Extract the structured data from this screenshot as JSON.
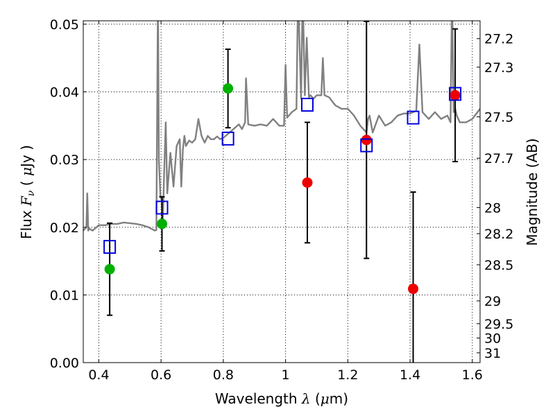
{
  "chart_data": {
    "type": "scatter",
    "xlabel": {
      "prefix": "Wavelength  ",
      "symbol": "λ",
      "unit_open": " (",
      "unit_mu": "μ",
      "unit_rest": "m)"
    },
    "ylabel": {
      "prefix": "Flux  ",
      "symbol": "F",
      "sub": "ν",
      "unit_open": "  (  ",
      "unit_mu": "μ",
      "unit_rest": "Jy )"
    },
    "y2label": "Magnitude (AB)",
    "xlim": [
      0.35,
      1.625
    ],
    "ylim": [
      0.0,
      0.0505
    ],
    "xticks": [
      0.4,
      0.6,
      0.8,
      1.0,
      1.2,
      1.4,
      1.6
    ],
    "xtick_labels": [
      "0.4",
      "0.6",
      "0.8",
      "1",
      "1.2",
      "1.4",
      "1.6"
    ],
    "yticks": [
      0.0,
      0.01,
      0.02,
      0.03,
      0.04,
      0.05
    ],
    "ytick_labels": [
      "0.00",
      "0.01",
      "0.02",
      "0.03",
      "0.04",
      "0.05"
    ],
    "y2ticks": [
      27.2,
      27.3,
      27.5,
      27.7,
      28,
      28.2,
      28.5,
      29,
      29.5,
      30,
      31
    ],
    "y2tick_labels": [
      "27.2",
      "27.3",
      "27.5",
      "27.7",
      "28",
      "28.2",
      "28.5",
      "29",
      "29.5",
      "30",
      "31"
    ],
    "grid": true,
    "colors": {
      "spectrum": "#808080",
      "green": "#00b000",
      "red": "#ee0000",
      "blue": "#0000dd",
      "errorbar": "#000000"
    },
    "spectrum": {
      "x": [
        0.35,
        0.36,
        0.363,
        0.366,
        0.369,
        0.38,
        0.4,
        0.42,
        0.44,
        0.46,
        0.48,
        0.5,
        0.52,
        0.54,
        0.56,
        0.58,
        0.585,
        0.59,
        0.593,
        0.598,
        0.602,
        0.605,
        0.61,
        0.615,
        0.62,
        0.63,
        0.64,
        0.65,
        0.66,
        0.665,
        0.67,
        0.675,
        0.68,
        0.69,
        0.7,
        0.71,
        0.72,
        0.73,
        0.74,
        0.75,
        0.76,
        0.77,
        0.78,
        0.79,
        0.8,
        0.82,
        0.84,
        0.85,
        0.86,
        0.87,
        0.873,
        0.88,
        0.9,
        0.92,
        0.94,
        0.96,
        0.98,
        0.995,
        1.0,
        1.005,
        1.02,
        1.035,
        1.04,
        1.05,
        1.055,
        1.062,
        1.068,
        1.075,
        1.08,
        1.09,
        1.1,
        1.115,
        1.12,
        1.125,
        1.14,
        1.16,
        1.18,
        1.2,
        1.22,
        1.24,
        1.26,
        1.265,
        1.27,
        1.28,
        1.3,
        1.32,
        1.34,
        1.36,
        1.38,
        1.4,
        1.42,
        1.43,
        1.44,
        1.46,
        1.48,
        1.5,
        1.52,
        1.53,
        1.535,
        1.54,
        1.545,
        1.55,
        1.56,
        1.58,
        1.6,
        1.625
      ],
      "y": [
        0.0195,
        0.02,
        0.025,
        0.0195,
        0.0198,
        0.0195,
        0.0203,
        0.0203,
        0.0205,
        0.0205,
        0.0207,
        0.0206,
        0.0205,
        0.0203,
        0.02,
        0.0195,
        0.0196,
        0.055,
        0.03,
        0.0245,
        0.024,
        0.02,
        0.028,
        0.0355,
        0.025,
        0.031,
        0.026,
        0.032,
        0.033,
        0.026,
        0.0315,
        0.0335,
        0.032,
        0.0328,
        0.0325,
        0.033,
        0.036,
        0.0335,
        0.0325,
        0.0335,
        0.033,
        0.033,
        0.0334,
        0.033,
        0.0332,
        0.034,
        0.0348,
        0.0352,
        0.0345,
        0.0355,
        0.042,
        0.0352,
        0.035,
        0.0352,
        0.035,
        0.036,
        0.035,
        0.035,
        0.044,
        0.0362,
        0.037,
        0.0375,
        0.055,
        0.039,
        0.055,
        0.0395,
        0.048,
        0.0392,
        0.0395,
        0.039,
        0.0395,
        0.0395,
        0.045,
        0.0395,
        0.0392,
        0.038,
        0.0375,
        0.0375,
        0.0365,
        0.035,
        0.034,
        0.036,
        0.0365,
        0.034,
        0.0365,
        0.035,
        0.0355,
        0.0365,
        0.0368,
        0.0368,
        0.0372,
        0.047,
        0.037,
        0.036,
        0.037,
        0.036,
        0.0365,
        0.0355,
        0.055,
        0.037,
        0.0375,
        0.0365,
        0.0355,
        0.0355,
        0.036,
        0.0375
      ]
    },
    "series": [
      {
        "marker": "circle",
        "color": "green",
        "x": [
          0.435,
          0.603,
          0.815
        ],
        "y": [
          0.0138,
          0.0205,
          0.0405
        ],
        "yerr": [
          0.0068,
          0.004,
          0.0058
        ]
      },
      {
        "marker": "circle",
        "color": "red",
        "x": [
          1.07,
          1.26,
          1.41,
          1.545
        ],
        "y": [
          0.0266,
          0.0329,
          0.0109,
          0.0395
        ],
        "yerr": [
          0.0089,
          0.0175,
          0.0143,
          0.0098
        ]
      },
      {
        "marker": "square",
        "color": "blue",
        "x": [
          0.435,
          0.603,
          0.815,
          1.07,
          1.26,
          1.41,
          1.545
        ],
        "y": [
          0.0171,
          0.0229,
          0.0331,
          0.0381,
          0.0321,
          0.0362,
          0.0397
        ]
      }
    ]
  }
}
